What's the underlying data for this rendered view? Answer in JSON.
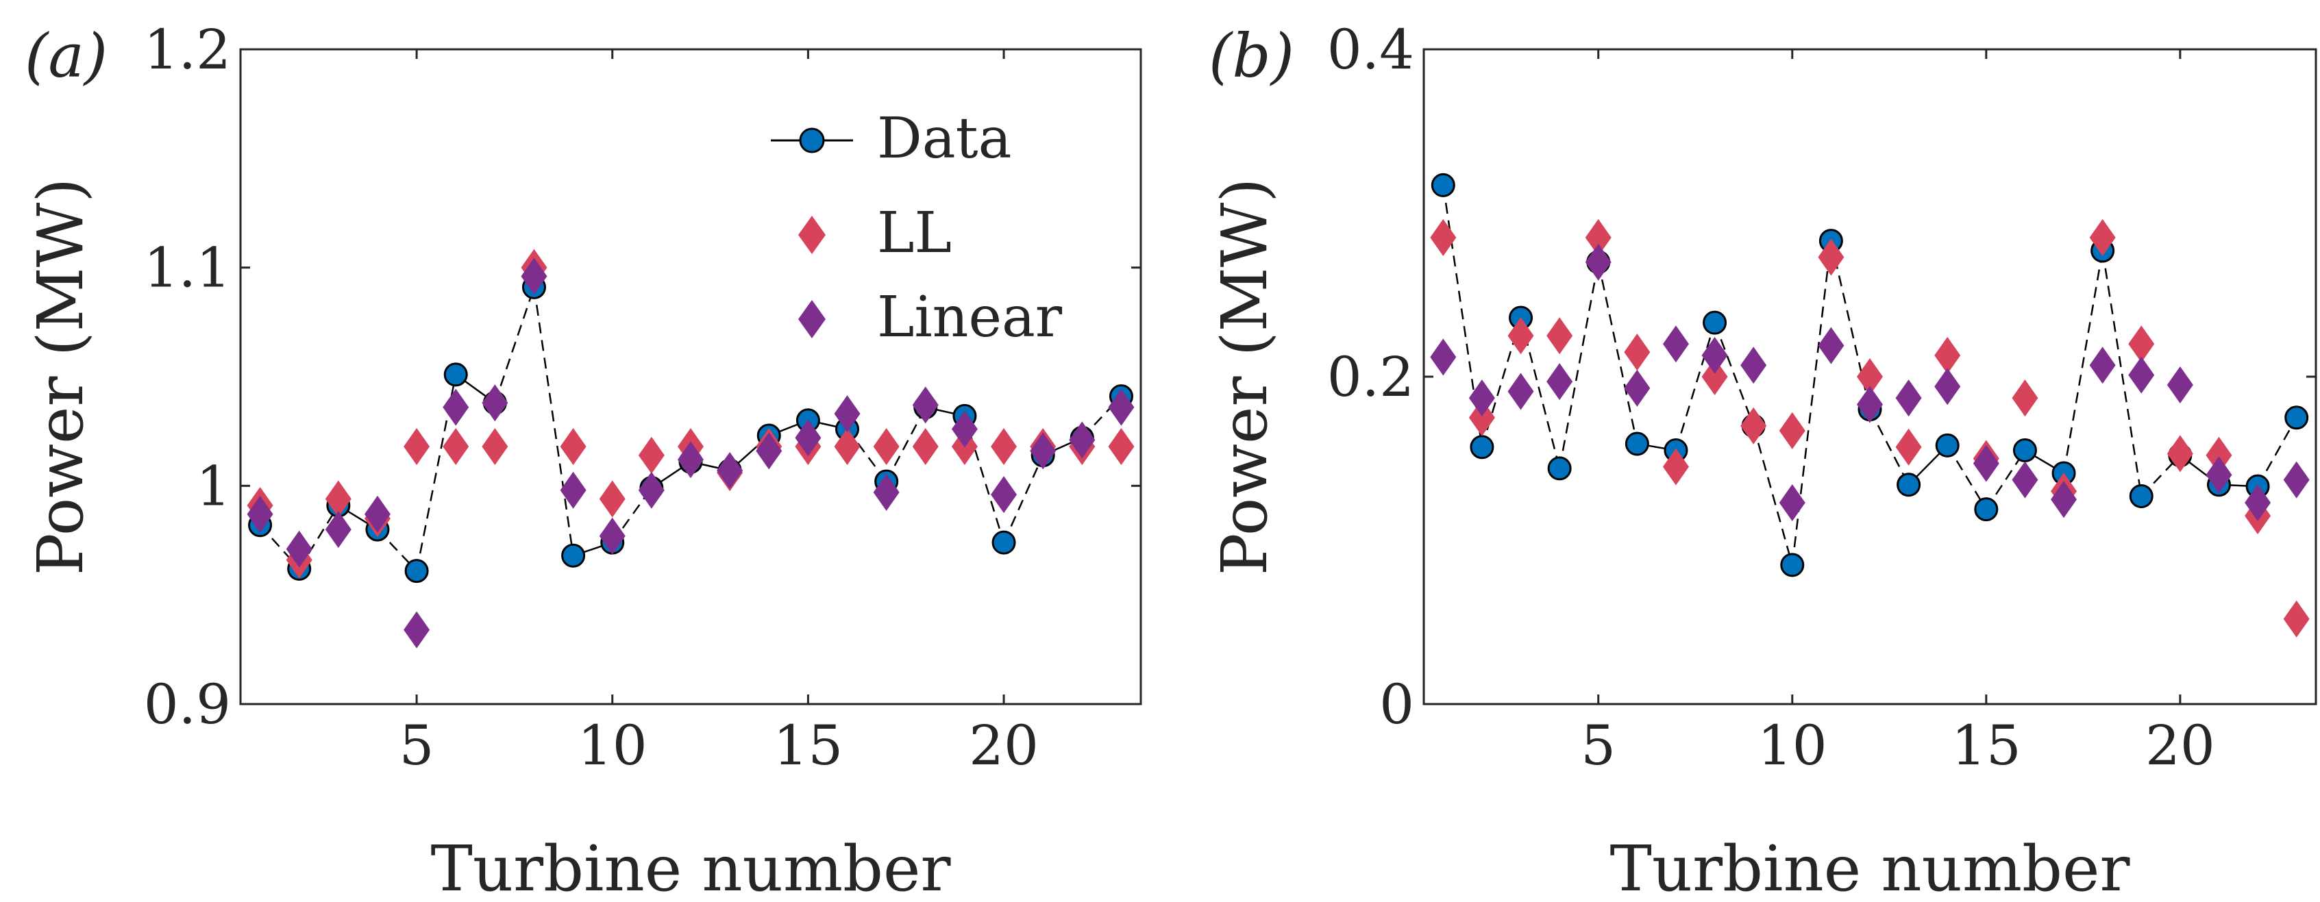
{
  "colors": {
    "data_marker": "#0072BD",
    "ll_marker": "#D6435A",
    "linear_marker": "#7E2F8E",
    "axis": "#262626",
    "line": "#000000"
  },
  "legend": {
    "items": [
      "Data",
      "LL",
      "Linear"
    ]
  },
  "chart_data": [
    {
      "panel_label": "(a)",
      "type": "scatter",
      "xlabel": "Turbine number",
      "ylabel": "Power (MW)",
      "xlim": [
        0.5,
        23.5
      ],
      "ylim": [
        0.9,
        1.2
      ],
      "xticks": [
        5,
        10,
        15,
        20
      ],
      "xtick_labels": [
        "5",
        "10",
        "15",
        "20"
      ],
      "yticks": [
        0.9,
        1.0,
        1.1,
        1.2
      ],
      "ytick_labels": [
        "0.9",
        "1",
        "1.1",
        "1.2"
      ],
      "x": [
        1,
        2,
        3,
        4,
        5,
        6,
        7,
        8,
        9,
        10,
        11,
        12,
        13,
        14,
        15,
        16,
        17,
        18,
        19,
        20,
        21,
        22,
        23
      ],
      "series": [
        {
          "name": "Data",
          "values": [
            0.982,
            0.962,
            0.991,
            0.98,
            0.961,
            1.051,
            1.038,
            1.091,
            0.968,
            0.974,
            0.999,
            1.011,
            1.007,
            1.023,
            1.03,
            1.026,
            1.002,
            1.036,
            1.032,
            0.974,
            1.014,
            1.022,
            1.041
          ]
        },
        {
          "name": "LL",
          "values": [
            0.991,
            0.966,
            0.994,
            0.985,
            1.018,
            1.018,
            1.018,
            1.1,
            1.018,
            0.994,
            1.014,
            1.018,
            1.006,
            1.018,
            1.018,
            1.018,
            1.018,
            1.018,
            1.018,
            1.018,
            1.018,
            1.018,
            1.018
          ]
        },
        {
          "name": "Linear",
          "values": [
            0.987,
            0.971,
            0.98,
            0.987,
            0.934,
            1.036,
            1.038,
            1.096,
            0.998,
            0.977,
            0.998,
            1.012,
            1.007,
            1.016,
            1.022,
            1.033,
            0.997,
            1.037,
            1.026,
            0.996,
            1.016,
            1.021,
            1.036
          ]
        }
      ]
    },
    {
      "panel_label": "(b)",
      "type": "scatter",
      "xlabel": "Turbine number",
      "ylabel": "Power (MW)",
      "xlim": [
        0.5,
        23.5
      ],
      "ylim": [
        0,
        0.4
      ],
      "xticks": [
        5,
        10,
        15,
        20
      ],
      "xtick_labels": [
        "5",
        "10",
        "15",
        "20"
      ],
      "yticks": [
        0,
        0.2,
        0.4
      ],
      "ytick_labels": [
        "0",
        "0.2",
        "0.4"
      ],
      "x": [
        1,
        2,
        3,
        4,
        5,
        6,
        7,
        8,
        9,
        10,
        11,
        12,
        13,
        14,
        15,
        16,
        17,
        18,
        19,
        20,
        21,
        22,
        23
      ],
      "series": [
        {
          "name": "Data",
          "values": [
            0.317,
            0.157,
            0.236,
            0.144,
            0.27,
            0.159,
            0.155,
            0.233,
            0.17,
            0.085,
            0.283,
            0.18,
            0.134,
            0.158,
            0.119,
            0.155,
            0.141,
            0.277,
            0.127,
            0.152,
            0.134,
            0.133,
            0.175
          ]
        },
        {
          "name": "LL",
          "values": [
            0.285,
            0.175,
            0.225,
            0.225,
            0.285,
            0.215,
            0.145,
            0.2,
            0.17,
            0.167,
            0.273,
            0.2,
            0.157,
            0.213,
            0.15,
            0.187,
            0.13,
            0.285,
            0.22,
            0.153,
            0.152,
            0.115,
            0.052
          ]
        },
        {
          "name": "Linear",
          "values": [
            0.212,
            0.187,
            0.191,
            0.197,
            0.27,
            0.193,
            0.22,
            0.213,
            0.207,
            0.123,
            0.219,
            0.183,
            0.187,
            0.194,
            0.147,
            0.137,
            0.125,
            0.207,
            0.201,
            0.195,
            0.14,
            0.123,
            0.137
          ]
        }
      ]
    }
  ]
}
